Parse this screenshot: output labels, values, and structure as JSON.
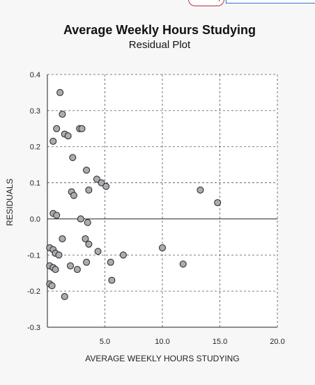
{
  "chart_data": {
    "type": "scatter",
    "title": "Average Weekly Hours Studying",
    "subtitle": "Residual Plot",
    "xlabel": "AVERAGE WEEKLY HOURS STUDYING",
    "ylabel": "RESIDUALS",
    "xlim": [
      0,
      20
    ],
    "ylim": [
      -0.3,
      0.4
    ],
    "x_ticks": [
      5,
      10,
      15,
      20
    ],
    "x_tick_labels": [
      "5.0",
      "10.0",
      "15.0",
      "20.0"
    ],
    "y_ticks": [
      0.4,
      0.3,
      0.2,
      0.1,
      0.0,
      -0.1,
      -0.2,
      -0.3
    ],
    "y_tick_labels": [
      "0.4",
      "0.3",
      "0.2",
      "0.1",
      "0.0",
      "-0.1",
      "-0.2",
      "-0.3"
    ],
    "grid": "dashed",
    "zero_line": true,
    "marker_color": "#a9acb0",
    "marker_edge_color": "#222222",
    "points": [
      {
        "x": 1.1,
        "y": 0.35
      },
      {
        "x": 1.3,
        "y": 0.29
      },
      {
        "x": 0.8,
        "y": 0.25
      },
      {
        "x": 2.8,
        "y": 0.25
      },
      {
        "x": 3.0,
        "y": 0.25
      },
      {
        "x": 1.5,
        "y": 0.235
      },
      {
        "x": 1.8,
        "y": 0.23
      },
      {
        "x": 0.5,
        "y": 0.215
      },
      {
        "x": 2.2,
        "y": 0.17
      },
      {
        "x": 3.4,
        "y": 0.135
      },
      {
        "x": 4.3,
        "y": 0.11
      },
      {
        "x": 4.7,
        "y": 0.1
      },
      {
        "x": 5.1,
        "y": 0.09
      },
      {
        "x": 3.6,
        "y": 0.08
      },
      {
        "x": 2.1,
        "y": 0.075
      },
      {
        "x": 2.3,
        "y": 0.065
      },
      {
        "x": 13.3,
        "y": 0.08
      },
      {
        "x": 14.8,
        "y": 0.045
      },
      {
        "x": 0.5,
        "y": 0.015
      },
      {
        "x": 0.8,
        "y": 0.01
      },
      {
        "x": 2.9,
        "y": 0.0
      },
      {
        "x": 3.5,
        "y": -0.01
      },
      {
        "x": 1.3,
        "y": -0.055
      },
      {
        "x": 3.3,
        "y": -0.055
      },
      {
        "x": 3.6,
        "y": -0.07
      },
      {
        "x": 0.2,
        "y": -0.08
      },
      {
        "x": 0.5,
        "y": -0.085
      },
      {
        "x": 0.7,
        "y": -0.095
      },
      {
        "x": 1.0,
        "y": -0.1
      },
      {
        "x": 4.4,
        "y": -0.09
      },
      {
        "x": 6.6,
        "y": -0.1
      },
      {
        "x": 10.0,
        "y": -0.08
      },
      {
        "x": 5.5,
        "y": -0.12
      },
      {
        "x": 3.4,
        "y": -0.12
      },
      {
        "x": 11.8,
        "y": -0.125
      },
      {
        "x": 0.2,
        "y": -0.13
      },
      {
        "x": 2.0,
        "y": -0.13
      },
      {
        "x": 0.5,
        "y": -0.135
      },
      {
        "x": 0.7,
        "y": -0.14
      },
      {
        "x": 2.6,
        "y": -0.14
      },
      {
        "x": 5.6,
        "y": -0.17
      },
      {
        "x": 0.2,
        "y": -0.18
      },
      {
        "x": 0.4,
        "y": -0.185
      },
      {
        "x": 1.5,
        "y": -0.215
      }
    ]
  }
}
